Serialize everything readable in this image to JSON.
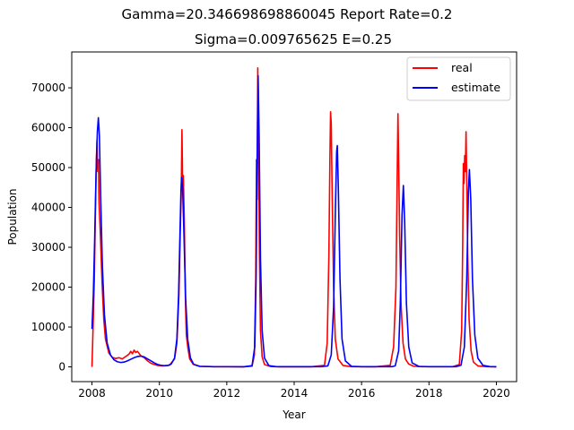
{
  "chart_data": {
    "type": "line",
    "title_line1": "Gamma=20.346698698860045 Report Rate=0.2",
    "title_line2": "Sigma=0.009765625 E=0.25",
    "xlabel": "Year",
    "ylabel": "Population",
    "xlim": [
      2007.4,
      2020.6
    ],
    "ylim": [
      -3700,
      79000
    ],
    "x_ticks": [
      2008,
      2010,
      2012,
      2014,
      2016,
      2018,
      2020
    ],
    "y_ticks": [
      0,
      10000,
      20000,
      30000,
      40000,
      50000,
      60000,
      70000
    ],
    "legend_position": "upper right",
    "grid": false,
    "series": [
      {
        "name": "real",
        "color": "#ff0000",
        "points": [
          [
            2008.0,
            0
          ],
          [
            2008.03,
            9000
          ],
          [
            2008.07,
            22000
          ],
          [
            2008.1,
            38000
          ],
          [
            2008.13,
            52000
          ],
          [
            2008.15,
            57000
          ],
          [
            2008.17,
            49000
          ],
          [
            2008.19,
            52000
          ],
          [
            2008.21,
            41000
          ],
          [
            2008.25,
            33000
          ],
          [
            2008.3,
            21000
          ],
          [
            2008.35,
            12000
          ],
          [
            2008.4,
            7000
          ],
          [
            2008.5,
            3500
          ],
          [
            2008.6,
            2400
          ],
          [
            2008.7,
            2100
          ],
          [
            2008.8,
            2300
          ],
          [
            2008.9,
            2000
          ],
          [
            2009.0,
            2600
          ],
          [
            2009.1,
            3200
          ],
          [
            2009.15,
            3900
          ],
          [
            2009.2,
            3300
          ],
          [
            2009.25,
            4200
          ],
          [
            2009.3,
            3600
          ],
          [
            2009.35,
            3900
          ],
          [
            2009.45,
            2800
          ],
          [
            2009.55,
            2300
          ],
          [
            2009.65,
            1500
          ],
          [
            2009.75,
            900
          ],
          [
            2009.85,
            600
          ],
          [
            2009.95,
            350
          ],
          [
            2010.1,
            250
          ],
          [
            2010.3,
            400
          ],
          [
            2010.45,
            2000
          ],
          [
            2010.52,
            6000
          ],
          [
            2010.58,
            18000
          ],
          [
            2010.62,
            34000
          ],
          [
            2010.65,
            44000
          ],
          [
            2010.67,
            59500
          ],
          [
            2010.69,
            46000
          ],
          [
            2010.71,
            48000
          ],
          [
            2010.74,
            37000
          ],
          [
            2010.77,
            18000
          ],
          [
            2010.8,
            8000
          ],
          [
            2010.85,
            4500
          ],
          [
            2010.9,
            2000
          ],
          [
            2011.0,
            700
          ],
          [
            2011.2,
            150
          ],
          [
            2011.6,
            50
          ],
          [
            2012.5,
            30
          ],
          [
            2012.75,
            200
          ],
          [
            2012.82,
            3000
          ],
          [
            2012.86,
            22000
          ],
          [
            2012.88,
            52000
          ],
          [
            2012.9,
            42000
          ],
          [
            2012.92,
            75000
          ],
          [
            2012.94,
            60000
          ],
          [
            2012.97,
            28000
          ],
          [
            2013.0,
            9000
          ],
          [
            2013.05,
            2500
          ],
          [
            2013.12,
            600
          ],
          [
            2013.3,
            80
          ],
          [
            2013.6,
            30
          ],
          [
            2014.5,
            30
          ],
          [
            2014.9,
            400
          ],
          [
            2014.98,
            6000
          ],
          [
            2015.03,
            28000
          ],
          [
            2015.06,
            52000
          ],
          [
            2015.08,
            64000
          ],
          [
            2015.1,
            61000
          ],
          [
            2015.13,
            42000
          ],
          [
            2015.17,
            20000
          ],
          [
            2015.22,
            7000
          ],
          [
            2015.3,
            2000
          ],
          [
            2015.45,
            350
          ],
          [
            2015.7,
            60
          ],
          [
            2016.4,
            30
          ],
          [
            2016.85,
            400
          ],
          [
            2016.95,
            5000
          ],
          [
            2017.02,
            20000
          ],
          [
            2017.06,
            50000
          ],
          [
            2017.08,
            63500
          ],
          [
            2017.1,
            52000
          ],
          [
            2017.13,
            33000
          ],
          [
            2017.17,
            16000
          ],
          [
            2017.23,
            6000
          ],
          [
            2017.3,
            2000
          ],
          [
            2017.4,
            700
          ],
          [
            2017.55,
            150
          ],
          [
            2017.8,
            40
          ],
          [
            2018.7,
            40
          ],
          [
            2018.9,
            600
          ],
          [
            2018.97,
            9000
          ],
          [
            2019.0,
            30000
          ],
          [
            2019.02,
            51000
          ],
          [
            2019.04,
            46000
          ],
          [
            2019.06,
            53000
          ],
          [
            2019.08,
            49000
          ],
          [
            2019.1,
            59000
          ],
          [
            2019.12,
            47000
          ],
          [
            2019.15,
            28000
          ],
          [
            2019.19,
            12000
          ],
          [
            2019.25,
            4000
          ],
          [
            2019.32,
            1200
          ],
          [
            2019.45,
            250
          ],
          [
            2019.7,
            60
          ],
          [
            2020.0,
            30
          ]
        ]
      },
      {
        "name": "estimate",
        "color": "#0000ff",
        "points": [
          [
            2008.0,
            9500
          ],
          [
            2008.04,
            18000
          ],
          [
            2008.08,
            32000
          ],
          [
            2008.12,
            48000
          ],
          [
            2008.16,
            59000
          ],
          [
            2008.19,
            62500
          ],
          [
            2008.22,
            58000
          ],
          [
            2008.26,
            42000
          ],
          [
            2008.31,
            25000
          ],
          [
            2008.37,
            13000
          ],
          [
            2008.45,
            6000
          ],
          [
            2008.55,
            3000
          ],
          [
            2008.65,
            1800
          ],
          [
            2008.75,
            1300
          ],
          [
            2008.85,
            1100
          ],
          [
            2008.95,
            1200
          ],
          [
            2009.05,
            1500
          ],
          [
            2009.15,
            1900
          ],
          [
            2009.25,
            2300
          ],
          [
            2009.35,
            2600
          ],
          [
            2009.45,
            2700
          ],
          [
            2009.55,
            2500
          ],
          [
            2009.65,
            2000
          ],
          [
            2009.75,
            1500
          ],
          [
            2009.85,
            1000
          ],
          [
            2009.95,
            600
          ],
          [
            2010.05,
            400
          ],
          [
            2010.15,
            300
          ],
          [
            2010.25,
            350
          ],
          [
            2010.35,
            700
          ],
          [
            2010.45,
            2200
          ],
          [
            2010.52,
            7000
          ],
          [
            2010.57,
            18000
          ],
          [
            2010.61,
            33000
          ],
          [
            2010.64,
            44000
          ],
          [
            2010.66,
            47500
          ],
          [
            2010.69,
            45000
          ],
          [
            2010.73,
            33000
          ],
          [
            2010.78,
            17000
          ],
          [
            2010.84,
            7000
          ],
          [
            2010.92,
            2300
          ],
          [
            2011.02,
            600
          ],
          [
            2011.2,
            120
          ],
          [
            2011.6,
            40
          ],
          [
            2012.5,
            30
          ],
          [
            2012.75,
            300
          ],
          [
            2012.83,
            5000
          ],
          [
            2012.87,
            22000
          ],
          [
            2012.9,
            52000
          ],
          [
            2012.93,
            73000
          ],
          [
            2012.96,
            58000
          ],
          [
            2013.0,
            27000
          ],
          [
            2013.05,
            9000
          ],
          [
            2013.12,
            2200
          ],
          [
            2013.25,
            300
          ],
          [
            2013.5,
            40
          ],
          [
            2014.8,
            40
          ],
          [
            2015.0,
            250
          ],
          [
            2015.1,
            3000
          ],
          [
            2015.17,
            15000
          ],
          [
            2015.22,
            38000
          ],
          [
            2015.26,
            54000
          ],
          [
            2015.28,
            55500
          ],
          [
            2015.31,
            45000
          ],
          [
            2015.36,
            22000
          ],
          [
            2015.42,
            7000
          ],
          [
            2015.52,
            1500
          ],
          [
            2015.7,
            150
          ],
          [
            2016.0,
            40
          ],
          [
            2016.9,
            40
          ],
          [
            2017.0,
            300
          ],
          [
            2017.1,
            4000
          ],
          [
            2017.15,
            16000
          ],
          [
            2017.2,
            38000
          ],
          [
            2017.24,
            45500
          ],
          [
            2017.28,
            36000
          ],
          [
            2017.33,
            16000
          ],
          [
            2017.4,
            5000
          ],
          [
            2017.5,
            1000
          ],
          [
            2017.7,
            120
          ],
          [
            2018.0,
            40
          ],
          [
            2018.8,
            40
          ],
          [
            2018.95,
            400
          ],
          [
            2019.05,
            5000
          ],
          [
            2019.12,
            22000
          ],
          [
            2019.17,
            44000
          ],
          [
            2019.2,
            49500
          ],
          [
            2019.24,
            42000
          ],
          [
            2019.29,
            22000
          ],
          [
            2019.36,
            8000
          ],
          [
            2019.45,
            2200
          ],
          [
            2019.6,
            400
          ],
          [
            2019.8,
            80
          ],
          [
            2020.0,
            30
          ]
        ]
      }
    ]
  }
}
